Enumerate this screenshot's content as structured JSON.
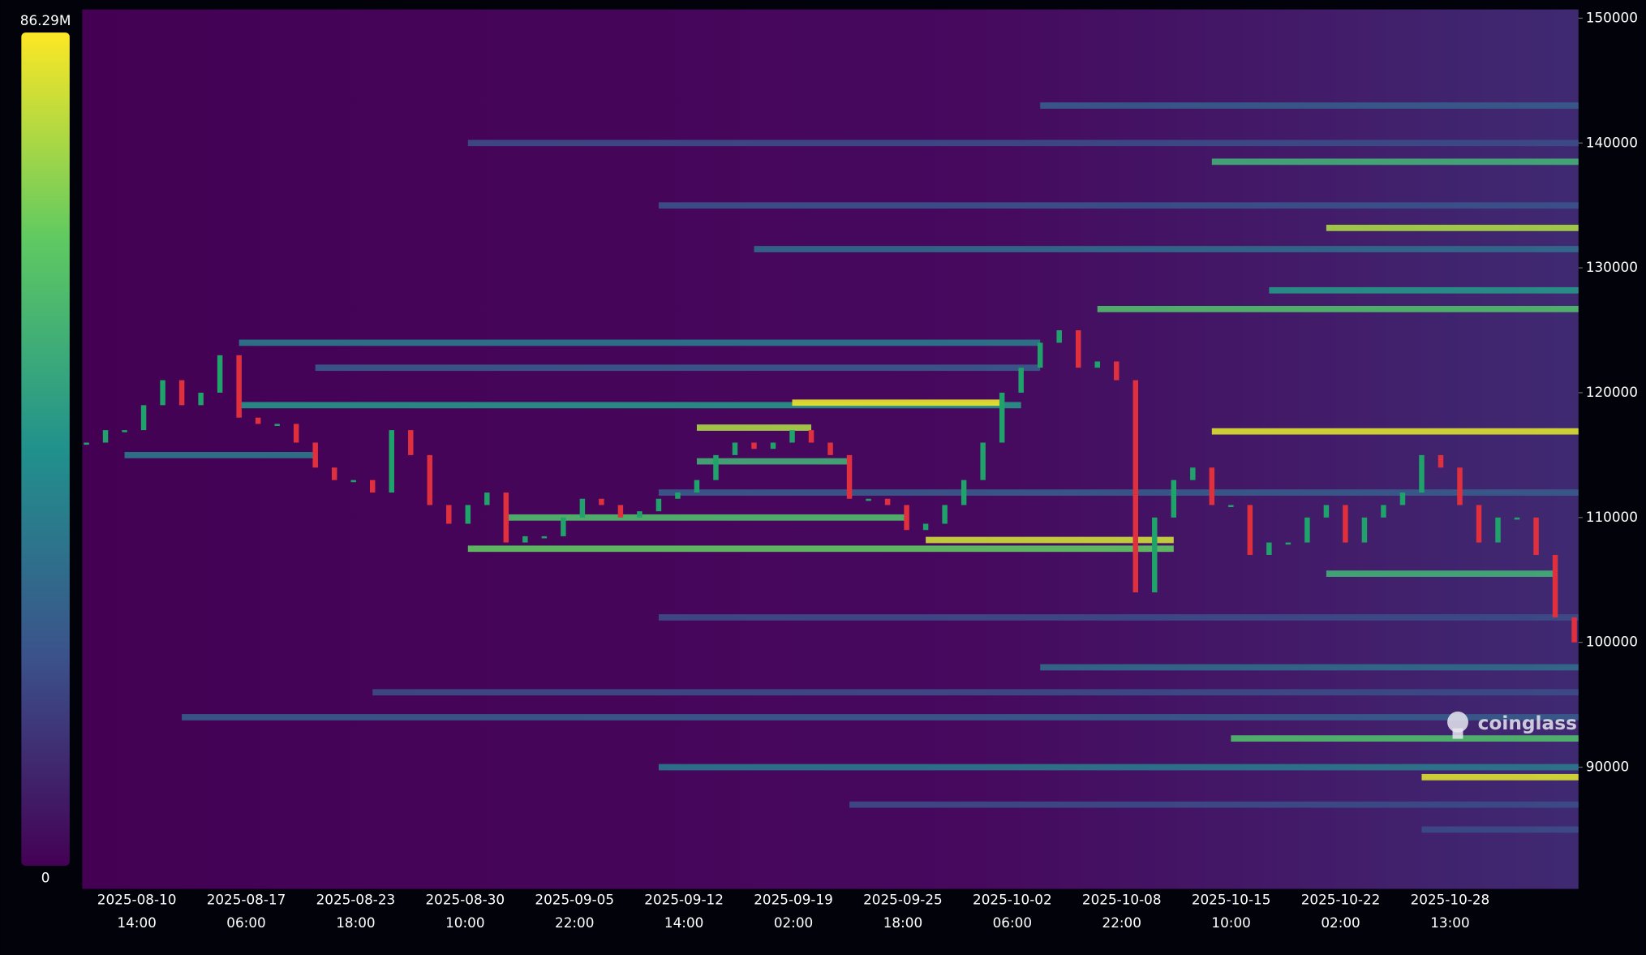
{
  "chart_data": {
    "type": "heatmap",
    "watermark": "coinglass",
    "colorbar": {
      "min": 0,
      "max": {
        "value": 86.29,
        "label": "86.29M"
      }
    },
    "ylim": [
      80250,
      150700
    ],
    "yticks": [
      90000,
      100000,
      110000,
      120000,
      130000,
      140000,
      150000
    ],
    "x_tick_labels": [
      {
        "date": "2025-08-10",
        "time": "14:00"
      },
      {
        "date": "2025-08-17",
        "time": "06:00"
      },
      {
        "date": "2025-08-23",
        "time": "18:00"
      },
      {
        "date": "2025-08-30",
        "time": "10:00"
      },
      {
        "date": "2025-09-05",
        "time": "22:00"
      },
      {
        "date": "2025-09-12",
        "time": "14:00"
      },
      {
        "date": "2025-09-19",
        "time": "02:00"
      },
      {
        "date": "2025-09-25",
        "time": "18:00"
      },
      {
        "date": "2025-10-02",
        "time": "06:00"
      },
      {
        "date": "2025-10-08",
        "time": "22:00"
      },
      {
        "date": "2025-10-15",
        "time": "10:00"
      },
      {
        "date": "2025-10-22",
        "time": "02:00"
      },
      {
        "date": "2025-10-28",
        "time": "13:00"
      }
    ],
    "price": [
      116000,
      117000,
      117000,
      119000,
      121000,
      119000,
      120000,
      123000,
      118000,
      117500,
      117500,
      116000,
      114000,
      113000,
      113000,
      112000,
      117000,
      115000,
      111000,
      109500,
      111000,
      112000,
      108000,
      108500,
      108500,
      110000,
      111500,
      111000,
      110000,
      110500,
      111500,
      112000,
      113000,
      115000,
      116000,
      115500,
      116000,
      117000,
      116000,
      115000,
      111500,
      111500,
      111000,
      109000,
      109500,
      111000,
      113000,
      116000,
      120000,
      122000,
      124000,
      125000,
      122000,
      122500,
      121000,
      104000,
      110000,
      113000,
      114000,
      111000,
      111000,
      107000,
      108000,
      108000,
      110000,
      111000,
      108000,
      110000,
      111000,
      112000,
      115000,
      114000,
      111000,
      108000,
      110000,
      110000,
      107000,
      102000,
      100000
    ],
    "bands": [
      {
        "price": 119000,
        "start": 8,
        "end": 49,
        "level": 45
      },
      {
        "price": 119200,
        "start": 37,
        "end": 48,
        "level": 84
      },
      {
        "price": 117200,
        "start": 32,
        "end": 38,
        "level": 75
      },
      {
        "price": 115000,
        "start": 2,
        "end": 12,
        "level": 35
      },
      {
        "price": 114500,
        "start": 32,
        "end": 40,
        "level": 55
      },
      {
        "price": 110000,
        "start": 22,
        "end": 43,
        "level": 60
      },
      {
        "price": 107500,
        "start": 20,
        "end": 57,
        "level": 65
      },
      {
        "price": 108200,
        "start": 44,
        "end": 57,
        "level": 80
      },
      {
        "price": 126700,
        "start": 53,
        "end": 78,
        "level": 60
      },
      {
        "price": 116900,
        "start": 59,
        "end": 78,
        "level": 82
      },
      {
        "price": 138500,
        "start": 59,
        "end": 78,
        "level": 55
      },
      {
        "price": 133200,
        "start": 65,
        "end": 78,
        "level": 75
      },
      {
        "price": 131500,
        "start": 35,
        "end": 78,
        "level": 30
      },
      {
        "price": 128200,
        "start": 62,
        "end": 78,
        "level": 45
      },
      {
        "price": 105500,
        "start": 65,
        "end": 77,
        "level": 55
      },
      {
        "price": 92300,
        "start": 60,
        "end": 78,
        "level": 60
      },
      {
        "price": 89200,
        "start": 70,
        "end": 78,
        "level": 82
      },
      {
        "price": 90000,
        "start": 30,
        "end": 78,
        "level": 35
      },
      {
        "price": 94000,
        "start": 5,
        "end": 78,
        "level": 25
      },
      {
        "price": 98000,
        "start": 50,
        "end": 78,
        "level": 30
      },
      {
        "price": 140000,
        "start": 20,
        "end": 78,
        "level": 20
      },
      {
        "price": 143000,
        "start": 50,
        "end": 78,
        "level": 25
      },
      {
        "price": 124000,
        "start": 8,
        "end": 50,
        "level": 35
      },
      {
        "price": 122000,
        "start": 12,
        "end": 50,
        "level": 25
      },
      {
        "price": 112000,
        "start": 30,
        "end": 78,
        "level": 25
      },
      {
        "price": 102000,
        "start": 30,
        "end": 78,
        "level": 20
      },
      {
        "price": 96000,
        "start": 15,
        "end": 78,
        "level": 20
      },
      {
        "price": 135000,
        "start": 30,
        "end": 78,
        "level": 22
      },
      {
        "price": 87000,
        "start": 40,
        "end": 78,
        "level": 20
      },
      {
        "price": 85000,
        "start": 70,
        "end": 78,
        "level": 20
      }
    ]
  }
}
